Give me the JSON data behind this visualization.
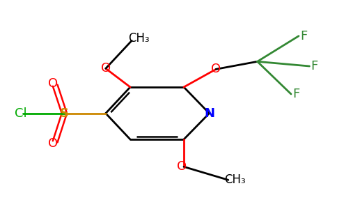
{
  "title": "",
  "bg_color": "#ffffff",
  "bond_color": "#000000",
  "atoms": {
    "N": {
      "color": "#0000ff"
    },
    "O": {
      "color": "#ff0000"
    },
    "S": {
      "color": "#cc8800"
    },
    "Cl": {
      "color": "#00aa00"
    },
    "F": {
      "color": "#338833"
    },
    "C": {
      "color": "#000000"
    }
  },
  "figsize": [
    4.84,
    3.0
  ],
  "dpi": 100
}
